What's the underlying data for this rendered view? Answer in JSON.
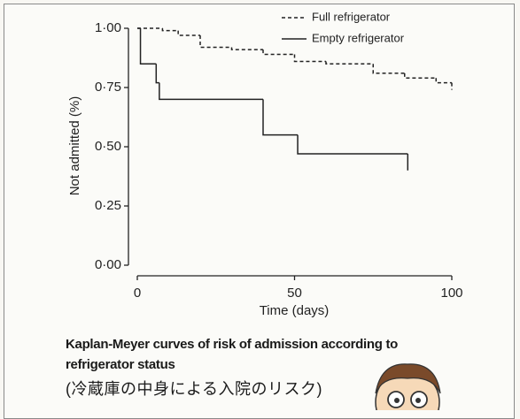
{
  "chart_data": {
    "type": "step",
    "caption": "Kaplan-Meyer curves of risk of admission according to refrigerator status",
    "subcaption": "(冷蔵庫の中身による入院のリスク)",
    "x_label": "Time (days)",
    "y_label": "Not admitted (%)",
    "xlim": [
      0,
      100
    ],
    "xticks": [
      0,
      50,
      100
    ],
    "ylim": [
      0,
      1
    ],
    "yticks": [
      {
        "value": 0,
        "label": "0·00"
      },
      {
        "value": 0.25,
        "label": "0·25"
      },
      {
        "value": 0.5,
        "label": "0·50"
      },
      {
        "value": 0.75,
        "label": "0·75"
      },
      {
        "value": 1,
        "label": "1·00"
      }
    ],
    "legend": "top-right",
    "series": [
      {
        "name": "Full refrigerator",
        "color": "#222222",
        "dashed": true,
        "x": [
          0,
          8,
          13,
          20,
          30,
          40,
          50,
          60,
          75,
          85,
          95,
          100
        ],
        "values": [
          1.0,
          0.99,
          0.97,
          0.92,
          0.91,
          0.89,
          0.86,
          0.85,
          0.81,
          0.79,
          0.77,
          0.74
        ]
      },
      {
        "name": "Empty refrigerator",
        "color": "#222222",
        "dashed": false,
        "x": [
          0,
          1,
          6,
          7,
          40,
          51,
          86
        ],
        "values": [
          1.0,
          0.85,
          0.77,
          0.7,
          0.55,
          0.47,
          0.4
        ]
      }
    ]
  }
}
